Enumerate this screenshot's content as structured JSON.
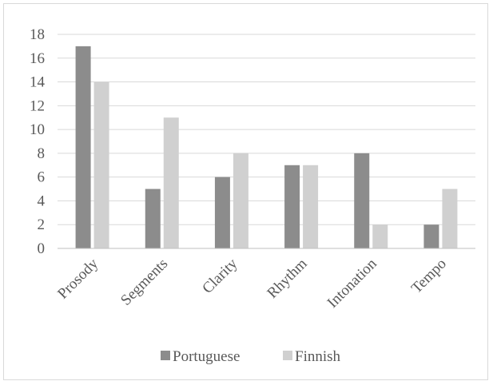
{
  "chart_data": {
    "type": "bar",
    "title": "",
    "xlabel": "",
    "ylabel": "",
    "categories": [
      "Prosody",
      "Segments",
      "Clarity",
      "Rhythm",
      "Intonation",
      "Tempo"
    ],
    "series": [
      {
        "name": "Portuguese",
        "color": "#8c8c8c",
        "values": [
          17,
          5,
          6,
          7,
          8,
          2
        ]
      },
      {
        "name": "Finnish",
        "color": "#d0d0d0",
        "values": [
          14,
          11,
          8,
          7,
          2,
          5
        ]
      }
    ],
    "ylim": [
      0,
      18
    ],
    "yticks": [
      0,
      2,
      4,
      6,
      8,
      10,
      12,
      14,
      16,
      18
    ],
    "grid": true,
    "legend_position": "bottom"
  }
}
